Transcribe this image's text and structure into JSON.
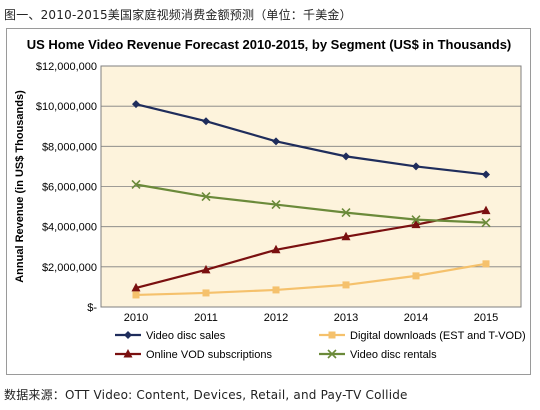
{
  "captions": {
    "top": "图一、2010-2015美国家庭视频消费金额预测（单位：千美金）",
    "bottom": "数据来源：OTT Video: Content, Devices, Retail, and Pay-TV Collide"
  },
  "chart_data": {
    "type": "line",
    "title": "US Home Video Revenue Forecast 2010-2015, by Segment (US$ in Thousands)",
    "xlabel": "",
    "ylabel": "Annual Revenue (in US$ Thousands)",
    "x": [
      "2010",
      "2011",
      "2012",
      "2013",
      "2014",
      "2015"
    ],
    "ylim": [
      0,
      12000000
    ],
    "y_ticks": [
      "$-",
      "$2,000,000",
      "$4,000,000",
      "$6,000,000",
      "$8,000,000",
      "$10,000,000",
      "$12,000,000"
    ],
    "grid": "horizontal",
    "legend_position": "bottom",
    "plot_background": "#fdf3dc",
    "series": [
      {
        "name": "Video disc sales",
        "color": "#1f2d5c",
        "marker": "diamond",
        "values": [
          10100000,
          9250000,
          8250000,
          7500000,
          7000000,
          6600000
        ]
      },
      {
        "name": "Digital downloads (EST and T-VOD)",
        "color": "#f5c16c",
        "marker": "square",
        "values": [
          600000,
          700000,
          850000,
          1100000,
          1550000,
          2150000
        ]
      },
      {
        "name": "Online VOD subscriptions",
        "color": "#7a1010",
        "marker": "triangle",
        "values": [
          950000,
          1850000,
          2850000,
          3500000,
          4100000,
          4800000
        ]
      },
      {
        "name": "Video disc rentals",
        "color": "#6b8a3a",
        "marker": "x",
        "values": [
          6100000,
          5500000,
          5100000,
          4700000,
          4350000,
          4200000
        ]
      }
    ]
  }
}
